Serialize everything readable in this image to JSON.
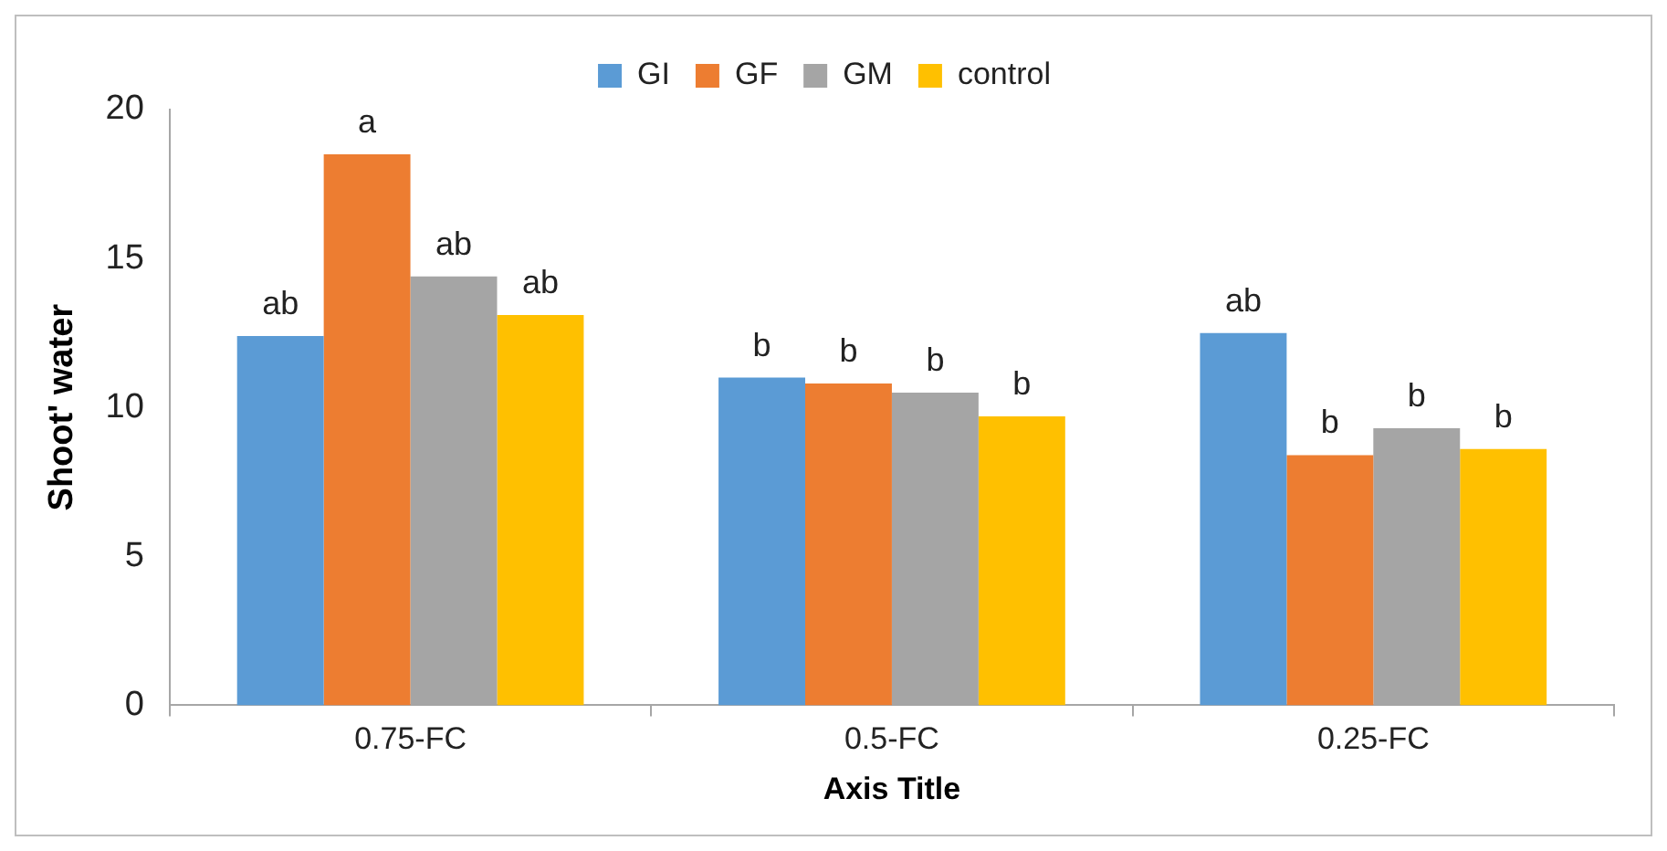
{
  "chart_data": {
    "type": "bar",
    "xlabel": "Axis Title",
    "ylabel": "Shoot' water",
    "categories": [
      "0.75-FC",
      "0.5-FC",
      "0.25-FC"
    ],
    "series": [
      {
        "name": "GI",
        "color": "#5b9bd5",
        "values": [
          12.4,
          11.0,
          12.5
        ],
        "value_labels": [
          "ab",
          "b",
          "ab"
        ]
      },
      {
        "name": "GF",
        "color": "#ed7d31",
        "values": [
          18.5,
          10.8,
          8.4
        ],
        "value_labels": [
          "a",
          "b",
          "b"
        ]
      },
      {
        "name": "GM",
        "color": "#a5a5a5",
        "values": [
          14.4,
          10.5,
          9.3
        ],
        "value_labels": [
          "ab",
          "b",
          "b"
        ]
      },
      {
        "name": "control",
        "color": "#ffc000",
        "values": [
          13.1,
          9.7,
          8.6
        ],
        "value_labels": [
          "ab",
          "b",
          "b"
        ]
      }
    ],
    "ylim": [
      0,
      20
    ],
    "yticks": [
      0,
      5,
      10,
      15,
      20
    ],
    "grid": false,
    "legend": "top"
  }
}
